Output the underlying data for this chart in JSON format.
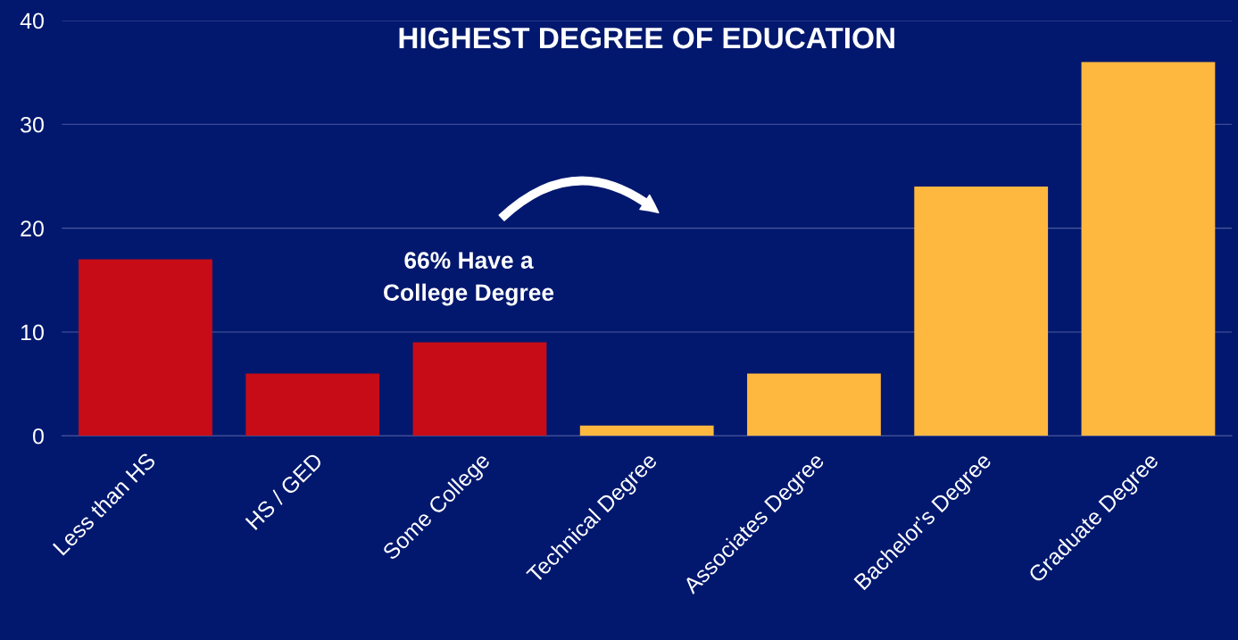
{
  "chart_data": {
    "type": "bar",
    "title": "HIGHEST DEGREE OF EDUCATION",
    "categories": [
      "Less than HS",
      "HS / GED",
      "Some College",
      "Technical Degree",
      "Associates Degree",
      "Bachelor's Degree",
      "Graduate Degree"
    ],
    "values": [
      17,
      6,
      9,
      1,
      6,
      24,
      36
    ],
    "colors": [
      "#c80c17",
      "#c80c17",
      "#c80c17",
      "#ffb83f",
      "#ffb83f",
      "#ffb83f",
      "#ffb83f"
    ],
    "ylim": [
      0,
      40
    ],
    "yticks": [
      0,
      10,
      20,
      30,
      40
    ],
    "grid": "y",
    "annotations": [
      "66% Have a\nCollege Degree"
    ]
  }
}
